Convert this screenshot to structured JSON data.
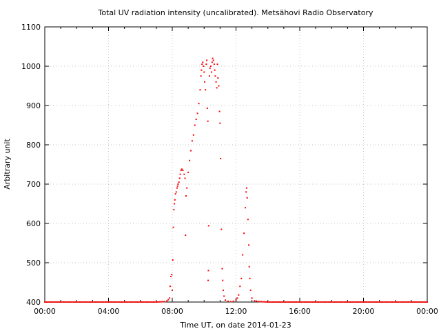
{
  "chart_data": {
    "type": "scatter",
    "title": "Total UV radiation intensity (uncalibrated). Metsähovi Radio Observatory",
    "xlabel": "Time UT, on date 2014-01-23",
    "ylabel": "Arbitrary unit",
    "xlim": [
      "00:00",
      "24:00"
    ],
    "ylim": [
      400,
      1100
    ],
    "x_ticks": [
      "00:00",
      "04:00",
      "08:00",
      "12:00",
      "16:00",
      "20:00",
      "00:00"
    ],
    "y_ticks": [
      400,
      500,
      600,
      700,
      800,
      900,
      1000,
      1100
    ],
    "grid": true,
    "series": [
      {
        "color": "#ff0000",
        "points": [
          [
            "00:00",
            400
          ],
          [
            "00:30",
            400
          ],
          [
            "01:00",
            400
          ],
          [
            "01:30",
            400
          ],
          [
            "02:00",
            400
          ],
          [
            "02:30",
            400
          ],
          [
            "03:00",
            400
          ],
          [
            "03:30",
            400
          ],
          [
            "04:00",
            400
          ],
          [
            "04:30",
            400
          ],
          [
            "05:00",
            400
          ],
          [
            "05:30",
            400
          ],
          [
            "06:00",
            400
          ],
          [
            "06:30",
            400
          ],
          [
            "07:00",
            400
          ],
          [
            "07:30",
            401
          ],
          [
            "07:40",
            403
          ],
          [
            "07:45",
            406
          ],
          [
            "07:50",
            410
          ],
          [
            "07:52",
            440
          ],
          [
            "07:55",
            465
          ],
          [
            "07:58",
            470
          ],
          [
            "08:00",
            430
          ],
          [
            "08:02",
            507
          ],
          [
            "08:04",
            590
          ],
          [
            "08:06",
            635
          ],
          [
            "08:08",
            650
          ],
          [
            "08:10",
            660
          ],
          [
            "08:12",
            675
          ],
          [
            "08:15",
            680
          ],
          [
            "08:18",
            690
          ],
          [
            "08:20",
            695
          ],
          [
            "08:22",
            700
          ],
          [
            "08:25",
            705
          ],
          [
            "08:28",
            715
          ],
          [
            "08:30",
            725
          ],
          [
            "08:33",
            735
          ],
          [
            "08:36",
            738
          ],
          [
            "08:40",
            735
          ],
          [
            "08:45",
            725
          ],
          [
            "08:48",
            715
          ],
          [
            "08:50",
            570
          ],
          [
            "08:52",
            670
          ],
          [
            "08:55",
            690
          ],
          [
            "09:00",
            730
          ],
          [
            "09:05",
            760
          ],
          [
            "09:10",
            785
          ],
          [
            "09:15",
            810
          ],
          [
            "09:20",
            825
          ],
          [
            "09:25",
            850
          ],
          [
            "09:30",
            865
          ],
          [
            "09:35",
            880
          ],
          [
            "09:40",
            905
          ],
          [
            "09:45",
            940
          ],
          [
            "09:48",
            975
          ],
          [
            "09:50",
            990
          ],
          [
            "09:52",
            1005
          ],
          [
            "09:55",
            1010
          ],
          [
            "09:58",
            1000
          ],
          [
            "10:00",
            985
          ],
          [
            "10:02",
            960
          ],
          [
            "10:05",
            940
          ],
          [
            "10:08",
            1005
          ],
          [
            "10:10",
            1015
          ],
          [
            "10:12",
            893
          ],
          [
            "10:14",
            860
          ],
          [
            "10:15",
            455
          ],
          [
            "10:16",
            480
          ],
          [
            "10:17",
            594
          ],
          [
            "10:20",
            975
          ],
          [
            "10:22",
            995
          ],
          [
            "10:25",
            1000
          ],
          [
            "10:28",
            985
          ],
          [
            "10:30",
            1010
          ],
          [
            "10:32",
            1020
          ],
          [
            "10:35",
            1015
          ],
          [
            "10:38",
            1005
          ],
          [
            "10:40",
            990
          ],
          [
            "10:42",
            975
          ],
          [
            "10:45",
            960
          ],
          [
            "10:48",
            945
          ],
          [
            "10:50",
            1005
          ],
          [
            "10:52",
            970
          ],
          [
            "10:55",
            950
          ],
          [
            "10:58",
            885
          ],
          [
            "11:00",
            855
          ],
          [
            "11:02",
            765
          ],
          [
            "11:05",
            585
          ],
          [
            "11:08",
            485
          ],
          [
            "11:10",
            455
          ],
          [
            "11:12",
            430
          ],
          [
            "11:15",
            415
          ],
          [
            "11:20",
            405
          ],
          [
            "11:30",
            402
          ],
          [
            "11:40",
            401
          ],
          [
            "11:50",
            402
          ],
          [
            "12:00",
            405
          ],
          [
            "12:05",
            410
          ],
          [
            "12:10",
            418
          ],
          [
            "12:15",
            440
          ],
          [
            "12:20",
            460
          ],
          [
            "12:25",
            520
          ],
          [
            "12:30",
            575
          ],
          [
            "12:35",
            640
          ],
          [
            "12:38",
            680
          ],
          [
            "12:40",
            690
          ],
          [
            "12:42",
            665
          ],
          [
            "12:45",
            610
          ],
          [
            "12:48",
            545
          ],
          [
            "12:50",
            490
          ],
          [
            "12:52",
            460
          ],
          [
            "12:55",
            430
          ],
          [
            "13:00",
            410
          ],
          [
            "13:10",
            403
          ],
          [
            "13:30",
            401
          ],
          [
            "14:00",
            400
          ],
          [
            "14:30",
            400
          ],
          [
            "15:00",
            400
          ],
          [
            "15:30",
            400
          ],
          [
            "16:00",
            400
          ],
          [
            "16:30",
            400
          ],
          [
            "17:00",
            400
          ],
          [
            "17:30",
            400
          ],
          [
            "18:00",
            400
          ],
          [
            "18:30",
            400
          ],
          [
            "19:00",
            400
          ],
          [
            "19:30",
            400
          ],
          [
            "20:00",
            400
          ],
          [
            "20:30",
            400
          ],
          [
            "21:00",
            400
          ],
          [
            "21:30",
            400
          ],
          [
            "22:00",
            400
          ],
          [
            "22:30",
            400
          ],
          [
            "23:00",
            400
          ],
          [
            "23:30",
            400
          ],
          [
            "24:00",
            400
          ]
        ]
      }
    ]
  }
}
